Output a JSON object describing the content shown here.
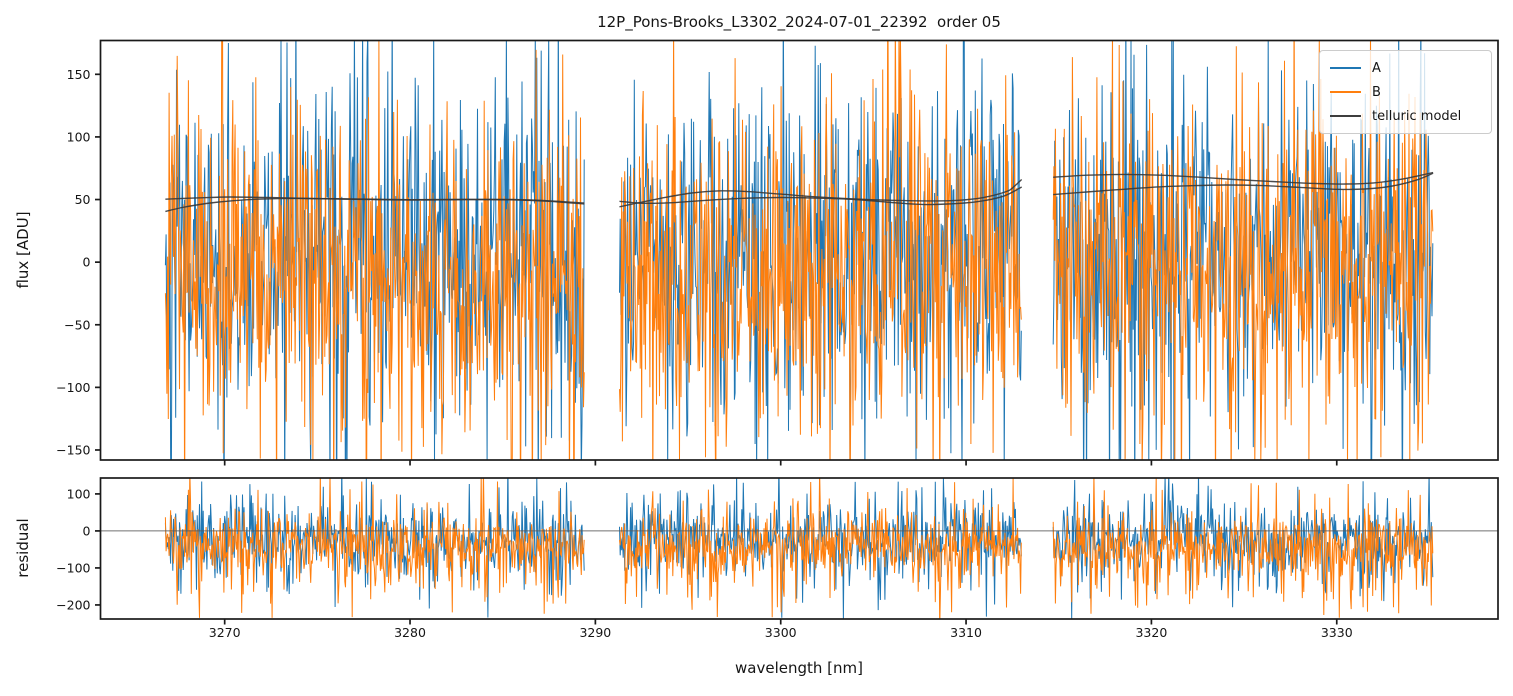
{
  "chart_data": {
    "type": "line",
    "title": "12P_Pons-Brooks_L3302_2024-07-01_22392  order 05",
    "xlabel": "wavelength [nm]",
    "xlim": [
      3263.3,
      3338.7
    ],
    "xticks": [
      3270,
      3280,
      3290,
      3300,
      3310,
      3320,
      3330
    ],
    "grid": false,
    "segments_nm": [
      [
        3266.8,
        3289.4
      ],
      [
        3291.3,
        3313.0
      ],
      [
        3314.7,
        3335.2
      ]
    ],
    "panels": [
      {
        "name": "flux",
        "ylabel": "flux [ADU]",
        "ylim": [
          -158,
          177
        ],
        "yticks": [
          -150,
          -100,
          -50,
          0,
          50,
          100,
          150
        ]
      },
      {
        "name": "residual",
        "ylabel": "residual",
        "ylim": [
          -238,
          143
        ],
        "yticks": [
          -200,
          -100,
          0,
          100
        ],
        "zero_line": true,
        "zero_line_color": "#5a5a5a"
      }
    ],
    "legend": {
      "position": "upper right",
      "entries": [
        {
          "label": "A",
          "color": "#1f77b4"
        },
        {
          "label": "B",
          "color": "#ff7f0e"
        },
        {
          "label": "telluric model",
          "color": "#3d3d3d"
        }
      ]
    },
    "series": [
      {
        "name": "A",
        "color": "#1f77b4",
        "kind": "noisy-spectrum",
        "seed_flux": 101,
        "seed_residual": 303,
        "flux_noise": {
          "mean": 4,
          "std": 55,
          "spike_prob": 0.28,
          "spike_min": 30,
          "spike_max": 140,
          "down_bias": 0.5
        },
        "residual_noise": {
          "mean": -22,
          "std": 38,
          "spike_prob": 0.26,
          "spike_min": 25,
          "spike_max": 150,
          "down_bias": 0.58
        }
      },
      {
        "name": "B",
        "color": "#ff7f0e",
        "kind": "noisy-spectrum",
        "seed_flux": 202,
        "seed_residual": 404,
        "flux_noise": {
          "mean": -4,
          "std": 55,
          "spike_prob": 0.28,
          "spike_min": 30,
          "spike_max": 135,
          "down_bias": 0.52
        },
        "residual_noise": {
          "mean": -42,
          "std": 38,
          "spike_prob": 0.26,
          "spike_min": 25,
          "spike_max": 150,
          "down_bias": 0.6
        }
      },
      {
        "name": "telluric model",
        "color": "#383838",
        "kind": "model-lines",
        "lines": [
          [
            [
              [
                3266.8,
                50.3
              ],
              [
                3268.5,
                51.3
              ],
              [
                3270.3,
                52.0
              ],
              [
                3272.3,
                51.6
              ],
              [
                3274.5,
                50.8
              ],
              [
                3277.0,
                50.2
              ],
              [
                3280.0,
                49.6
              ],
              [
                3283.0,
                49.9
              ],
              [
                3285.5,
                49.8
              ],
              [
                3287.5,
                48.6
              ],
              [
                3289.4,
                46.4
              ]
            ],
            [
              [
                3291.3,
                44.2
              ],
              [
                3292.4,
                47.6
              ],
              [
                3293.8,
                51.8
              ],
              [
                3295.2,
                55.2
              ],
              [
                3296.6,
                56.9
              ],
              [
                3298.2,
                56.3
              ],
              [
                3300.0,
                54.3
              ],
              [
                3302.0,
                52.0
              ],
              [
                3304.0,
                50.4
              ],
              [
                3306.0,
                49.4
              ],
              [
                3308.0,
                48.9
              ],
              [
                3309.6,
                49.4
              ],
              [
                3311.0,
                51.8
              ],
              [
                3312.2,
                56.5
              ],
              [
                3312.6,
                60.5
              ],
              [
                3313.0,
                66.0
              ]
            ],
            [
              [
                3314.7,
                67.8
              ],
              [
                3316.5,
                69.4
              ],
              [
                3318.5,
                70.1
              ],
              [
                3320.5,
                69.4
              ],
              [
                3322.5,
                67.9
              ],
              [
                3324.5,
                66.0
              ],
              [
                3326.5,
                64.4
              ],
              [
                3328.5,
                63.0
              ],
              [
                3330.5,
                62.4
              ],
              [
                3332.0,
                63.3
              ],
              [
                3333.5,
                66.2
              ],
              [
                3334.5,
                69.3
              ],
              [
                3335.2,
                71.6
              ]
            ]
          ],
          [
            [
              [
                3266.8,
                40.5
              ],
              [
                3267.7,
                43.6
              ],
              [
                3269.0,
                46.8
              ],
              [
                3270.4,
                49.0
              ],
              [
                3272.0,
                50.4
              ],
              [
                3274.0,
                50.9
              ],
              [
                3277.0,
                50.4
              ],
              [
                3280.0,
                49.9
              ],
              [
                3283.0,
                50.2
              ],
              [
                3285.5,
                50.0
              ],
              [
                3287.5,
                49.0
              ],
              [
                3289.4,
                47.2
              ]
            ],
            [
              [
                3291.3,
                48.6
              ],
              [
                3292.6,
                47.0
              ],
              [
                3294.0,
                47.4
              ],
              [
                3296.0,
                49.4
              ],
              [
                3298.0,
                51.0
              ],
              [
                3300.0,
                51.6
              ],
              [
                3302.0,
                51.1
              ],
              [
                3304.0,
                50.0
              ],
              [
                3306.0,
                47.6
              ],
              [
                3307.6,
                46.1
              ],
              [
                3309.0,
                46.4
              ],
              [
                3310.6,
                48.3
              ],
              [
                3312.0,
                52.6
              ],
              [
                3313.0,
                60.0
              ]
            ],
            [
              [
                3314.7,
                54.0
              ],
              [
                3316.5,
                56.0
              ],
              [
                3318.5,
                58.2
              ],
              [
                3320.5,
                60.2
              ],
              [
                3322.0,
                61.0
              ],
              [
                3324.0,
                61.6
              ],
              [
                3326.0,
                61.1
              ],
              [
                3328.0,
                59.7
              ],
              [
                3330.0,
                58.2
              ],
              [
                3331.5,
                58.4
              ],
              [
                3333.0,
                60.8
              ],
              [
                3334.3,
                65.5
              ],
              [
                3335.2,
                71.0
              ]
            ]
          ]
        ]
      }
    ]
  }
}
